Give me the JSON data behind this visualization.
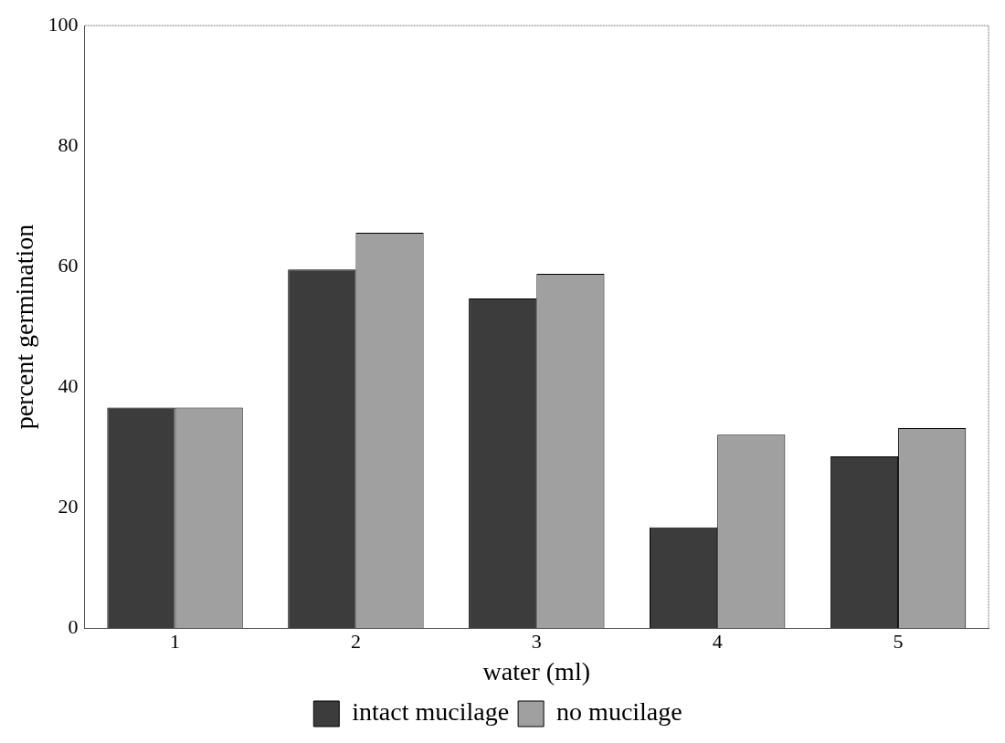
{
  "chart_data": {
    "type": "bar",
    "xlabel": "water (ml)",
    "ylabel": "percent germination",
    "categories": [
      "1",
      "2",
      "3",
      "4",
      "5"
    ],
    "series": [
      {
        "name": "intact mucilage",
        "color": "#3c3c3c",
        "values": [
          36.6,
          59.5,
          54.7,
          16.7,
          28.5
        ]
      },
      {
        "name": "no mucilage",
        "color": "#a0a0a0",
        "values": [
          36.6,
          65.6,
          58.8,
          32.1,
          33.2
        ]
      }
    ],
    "ylim": [
      0,
      100
    ],
    "yticks": [
      0,
      20,
      40,
      60,
      80,
      100
    ],
    "grid": false,
    "legend": "bottom"
  }
}
